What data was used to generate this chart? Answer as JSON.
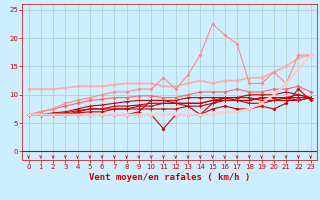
{
  "bg_color": "#cceeff",
  "grid_color": "#aacccc",
  "xlabel": "Vent moyen/en rafales ( km/h )",
  "xlabel_color": "#cc0000",
  "xlabel_fontsize": 6.5,
  "tick_color": "#cc0000",
  "tick_fontsize": 5,
  "xlim": [
    -0.5,
    23.5
  ],
  "ylim": [
    -1.5,
    26
  ],
  "yticks": [
    0,
    5,
    10,
    15,
    20,
    25
  ],
  "xticks": [
    0,
    1,
    2,
    3,
    4,
    5,
    6,
    7,
    8,
    9,
    10,
    11,
    12,
    13,
    14,
    15,
    16,
    17,
    18,
    19,
    20,
    21,
    22,
    23
  ],
  "series": [
    {
      "x": [
        0,
        1,
        2,
        3,
        4,
        5,
        6,
        7,
        8,
        9,
        10,
        11,
        12,
        13,
        14,
        15,
        16,
        17,
        18,
        19,
        20,
        21,
        22,
        23
      ],
      "y": [
        6.5,
        6.5,
        6.5,
        6.5,
        6.5,
        6.5,
        6.5,
        6.5,
        6.5,
        6.5,
        6.5,
        4.0,
        6.5,
        6.5,
        6.5,
        7.5,
        8.0,
        7.5,
        7.5,
        8.0,
        7.5,
        8.5,
        11.0,
        9.0
      ],
      "color": "#cc0000",
      "lw": 0.8,
      "marker": "D",
      "ms": 1.5
    },
    {
      "x": [
        0,
        1,
        2,
        3,
        4,
        5,
        6,
        7,
        8,
        9,
        10,
        11,
        12,
        13,
        14,
        15,
        16,
        17,
        18,
        19,
        20,
        21,
        22,
        23
      ],
      "y": [
        6.5,
        6.5,
        6.5,
        6.5,
        6.5,
        6.5,
        6.5,
        6.5,
        6.5,
        7.0,
        9.0,
        9.0,
        8.5,
        8.0,
        6.5,
        8.5,
        9.0,
        9.0,
        8.5,
        8.5,
        9.0,
        9.5,
        9.0,
        9.5
      ],
      "color": "#cc0000",
      "lw": 0.8,
      "marker": "+",
      "ms": 2.5
    },
    {
      "x": [
        0,
        1,
        2,
        3,
        4,
        5,
        6,
        7,
        8,
        9,
        10,
        11,
        12,
        13,
        14,
        15,
        16,
        17,
        18,
        19,
        20,
        21,
        22,
        23
      ],
      "y": [
        6.5,
        6.5,
        6.5,
        6.5,
        6.8,
        7.0,
        7.0,
        7.5,
        7.5,
        7.5,
        7.5,
        7.5,
        7.5,
        8.0,
        8.0,
        8.5,
        9.5,
        9.5,
        9.5,
        9.0,
        9.0,
        9.0,
        9.0,
        9.5
      ],
      "color": "#cc0000",
      "lw": 0.8,
      "marker": "+",
      "ms": 2.5
    },
    {
      "x": [
        0,
        1,
        2,
        3,
        4,
        5,
        6,
        7,
        8,
        9,
        10,
        11,
        12,
        13,
        14,
        15,
        16,
        17,
        18,
        19,
        20,
        21,
        22,
        23
      ],
      "y": [
        6.5,
        6.5,
        6.5,
        6.5,
        7.0,
        7.5,
        7.5,
        7.5,
        7.5,
        8.0,
        8.0,
        8.5,
        8.5,
        8.5,
        8.5,
        9.0,
        9.5,
        9.0,
        9.0,
        9.5,
        9.5,
        9.5,
        9.5,
        9.5
      ],
      "color": "#cc0000",
      "lw": 0.8,
      "marker": "+",
      "ms": 2.5
    },
    {
      "x": [
        0,
        1,
        2,
        3,
        4,
        5,
        6,
        7,
        8,
        9,
        10,
        11,
        12,
        13,
        14,
        15,
        16,
        17,
        18,
        19,
        20,
        21,
        22,
        23
      ],
      "y": [
        6.5,
        6.5,
        6.5,
        6.8,
        7.2,
        7.5,
        7.5,
        8.0,
        8.0,
        8.2,
        8.5,
        8.5,
        8.5,
        8.5,
        8.5,
        9.0,
        9.0,
        9.0,
        9.0,
        9.5,
        9.5,
        9.5,
        10.0,
        9.5
      ],
      "color": "#cc0000",
      "lw": 0.8,
      "marker": "+",
      "ms": 2.5
    },
    {
      "x": [
        0,
        1,
        2,
        3,
        4,
        5,
        6,
        7,
        8,
        9,
        10,
        11,
        12,
        13,
        14,
        15,
        16,
        17,
        18,
        19,
        20,
        21,
        22,
        23
      ],
      "y": [
        6.5,
        6.5,
        6.8,
        7.0,
        7.5,
        8.0,
        8.2,
        8.5,
        8.8,
        9.0,
        9.0,
        9.0,
        9.0,
        9.5,
        9.5,
        9.5,
        9.5,
        9.5,
        10.0,
        10.0,
        10.0,
        10.5,
        10.0,
        9.5
      ],
      "color": "#cc0000",
      "lw": 0.8,
      "marker": "+",
      "ms": 2.5
    },
    {
      "x": [
        0,
        1,
        2,
        3,
        4,
        5,
        6,
        7,
        8,
        9,
        10,
        11,
        12,
        13,
        14,
        15,
        16,
        17,
        18,
        19,
        20,
        21,
        22,
        23
      ],
      "y": [
        6.5,
        7.0,
        7.5,
        8.0,
        8.5,
        9.0,
        9.2,
        9.5,
        9.5,
        9.8,
        9.8,
        9.5,
        9.5,
        10.0,
        10.5,
        10.5,
        10.5,
        11.0,
        10.5,
        10.5,
        11.0,
        11.0,
        11.5,
        10.5
      ],
      "color": "#ff6666",
      "lw": 0.8,
      "marker": "D",
      "ms": 1.5
    },
    {
      "x": [
        0,
        1,
        2,
        3,
        4,
        5,
        6,
        7,
        8,
        9,
        10,
        11,
        12,
        13,
        14,
        15,
        16,
        17,
        18,
        19,
        20,
        21,
        22,
        23
      ],
      "y": [
        11.0,
        11.0,
        11.0,
        11.2,
        11.5,
        11.5,
        11.5,
        11.8,
        12.0,
        12.0,
        12.0,
        11.5,
        11.5,
        12.0,
        12.5,
        12.0,
        12.5,
        12.5,
        13.0,
        13.0,
        14.0,
        15.0,
        16.5,
        17.0
      ],
      "color": "#ffaaaa",
      "lw": 1.2,
      "marker": "D",
      "ms": 1.5
    },
    {
      "x": [
        0,
        1,
        2,
        3,
        4,
        5,
        6,
        7,
        8,
        9,
        10,
        11,
        12,
        13,
        14,
        15,
        16,
        17,
        18,
        19,
        20,
        21,
        22,
        23
      ],
      "y": [
        6.5,
        7.0,
        7.5,
        8.5,
        9.0,
        9.5,
        10.0,
        10.5,
        10.5,
        11.0,
        11.0,
        13.0,
        11.0,
        13.5,
        17.0,
        22.5,
        20.5,
        19.0,
        12.0,
        12.0,
        14.0,
        12.0,
        17.0,
        17.0
      ],
      "color": "#ff8888",
      "lw": 0.8,
      "marker": "D",
      "ms": 1.5
    },
    {
      "x": [
        0,
        1,
        2,
        3,
        4,
        5,
        6,
        7,
        8,
        9,
        10,
        11,
        12,
        13,
        14,
        15,
        16,
        17,
        18,
        19,
        20,
        21,
        22,
        23
      ],
      "y": [
        6.5,
        6.5,
        6.5,
        6.5,
        6.5,
        6.5,
        6.5,
        6.5,
        6.5,
        6.5,
        6.5,
        6.5,
        6.5,
        6.5,
        6.5,
        6.5,
        7.0,
        7.0,
        7.5,
        8.5,
        10.0,
        12.0,
        14.5,
        17.0
      ],
      "color": "#ffcccc",
      "lw": 1.5,
      "marker": "D",
      "ms": 1.5
    }
  ]
}
